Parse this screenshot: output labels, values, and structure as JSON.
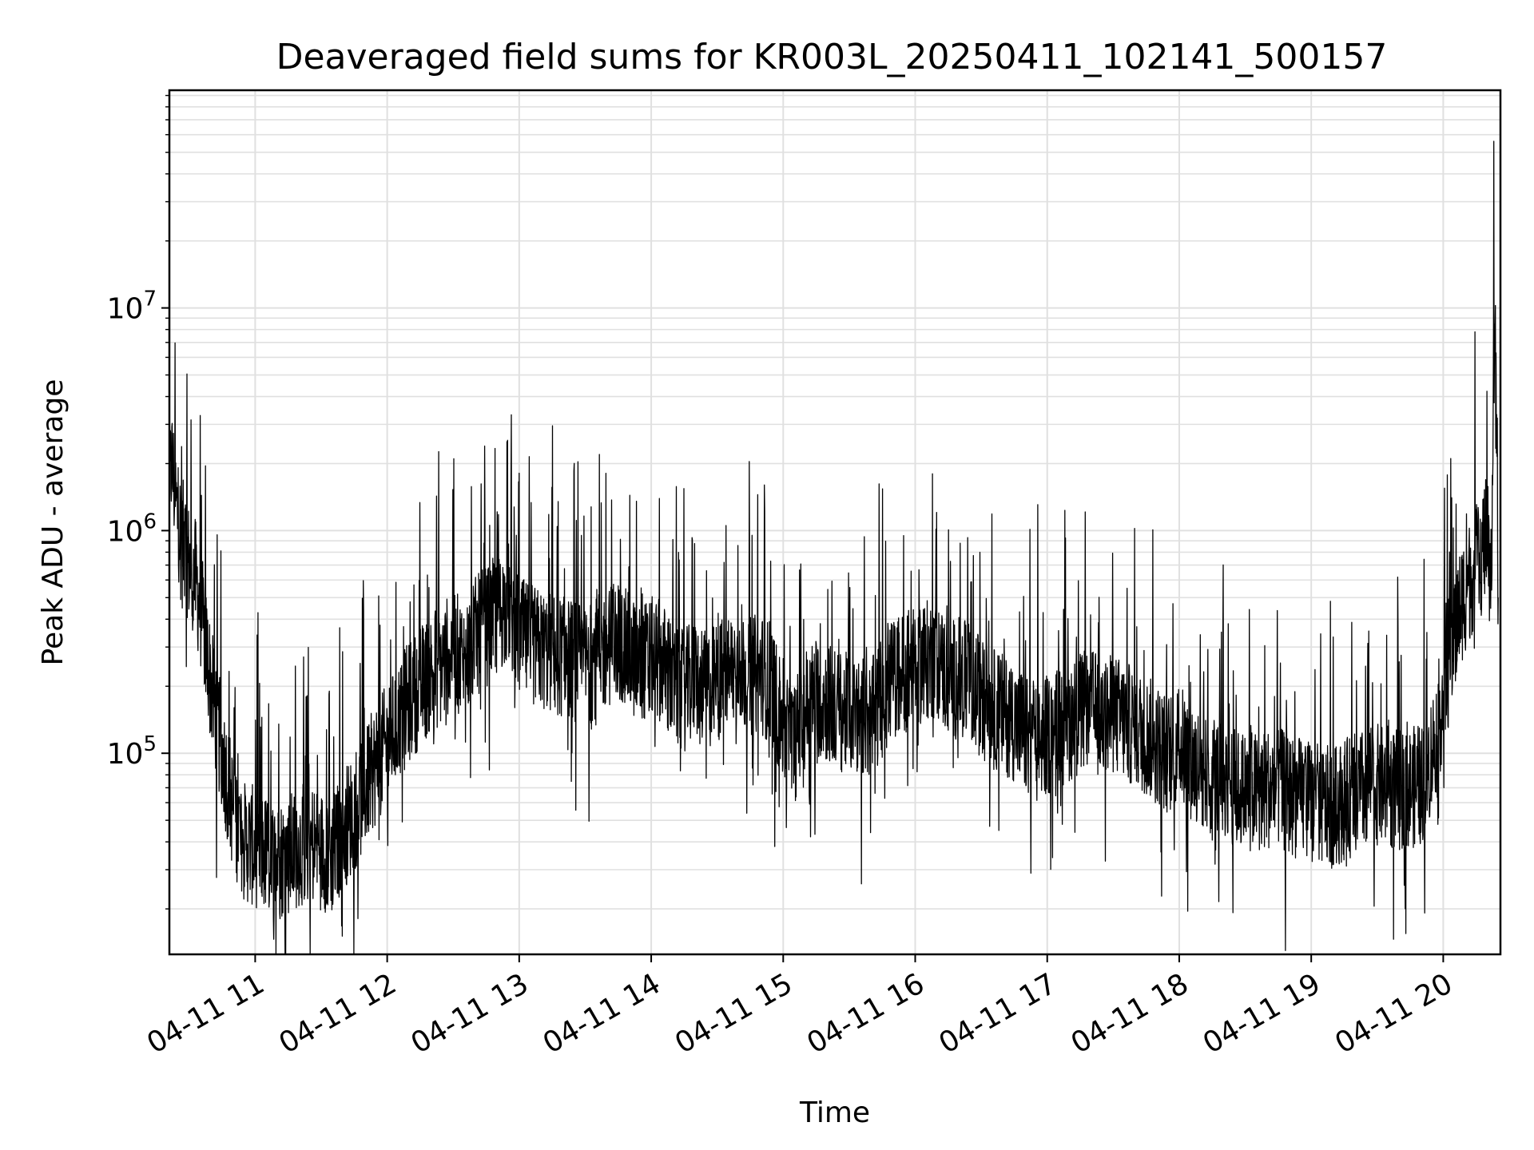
{
  "chart_data": {
    "type": "line",
    "title": "Deaveraged field sums for KR003L_20250411_102141_500157",
    "xlabel": "Time",
    "ylabel": "Peak ADU - average",
    "yscale": "log",
    "grid": true,
    "xlim": [
      "04-11 10:21",
      "04-11 20:26"
    ],
    "ylim": [
      12500,
      95000000
    ],
    "x_ticks": [
      "04-11 11",
      "04-11 12",
      "04-11 13",
      "04-11 14",
      "04-11 15",
      "04-11 16",
      "04-11 17",
      "04-11 18",
      "04-11 19",
      "04-11 20"
    ],
    "y_ticks": [
      {
        "base": "10",
        "exp": "5",
        "value": 100000
      },
      {
        "base": "10",
        "exp": "6",
        "value": 1000000
      },
      {
        "base": "10",
        "exp": "7",
        "value": 10000000
      }
    ],
    "line_color": "#000000",
    "grid_color": "#e0e0e0",
    "series": [
      {
        "x": [
          "10:21",
          "10:22",
          "10:24",
          "10:26",
          "10:28",
          "10:30",
          "10:33",
          "10:36",
          "10:40",
          "10:45",
          "10:50",
          "10:55",
          "11:00",
          "11:05",
          "11:10",
          "11:15",
          "11:20",
          "11:25",
          "11:30",
          "11:35",
          "11:40",
          "11:45",
          "11:50",
          "11:55",
          "12:00",
          "12:05",
          "12:10",
          "12:15",
          "12:20",
          "12:25",
          "12:30",
          "12:35",
          "12:40",
          "12:45",
          "12:50",
          "12:55",
          "13:00",
          "13:05",
          "13:10",
          "13:15",
          "13:20",
          "13:25",
          "13:30",
          "13:35",
          "13:40",
          "13:45",
          "13:50",
          "13:55",
          "14:00",
          "14:05",
          "14:10",
          "14:15",
          "14:20",
          "14:25",
          "14:30",
          "14:35",
          "14:40",
          "14:45",
          "14:50",
          "14:55",
          "15:00",
          "15:05",
          "15:10",
          "15:15",
          "15:20",
          "15:25",
          "15:30",
          "15:35",
          "15:40",
          "15:45",
          "15:50",
          "15:55",
          "16:00",
          "16:05",
          "16:10",
          "16:15",
          "16:20",
          "16:25",
          "16:30",
          "16:35",
          "16:40",
          "16:45",
          "16:50",
          "16:55",
          "17:00",
          "17:05",
          "17:10",
          "17:15",
          "17:20",
          "17:25",
          "17:30",
          "17:35",
          "17:40",
          "17:45",
          "17:50",
          "17:55",
          "18:00",
          "18:05",
          "18:10",
          "18:15",
          "18:20",
          "18:25",
          "18:30",
          "18:35",
          "18:40",
          "18:45",
          "18:50",
          "18:55",
          "19:00",
          "19:05",
          "19:10",
          "19:15",
          "19:20",
          "19:25",
          "19:30",
          "19:35",
          "19:40",
          "19:45",
          "19:50",
          "19:55",
          "20:00",
          "20:03",
          "20:06",
          "20:09",
          "20:12",
          "20:15",
          "20:17",
          "20:19",
          "20:20",
          "20:21",
          "20:22",
          "20:23",
          "20:24",
          "20:25"
        ],
        "y": [
          1500000,
          2100000,
          1300000,
          1000000,
          850000,
          700000,
          600000,
          400000,
          200000,
          100000,
          55000,
          40000,
          38000,
          35000,
          33000,
          35000,
          38000,
          40000,
          37000,
          35000,
          45000,
          55000,
          70000,
          90000,
          110000,
          140000,
          170000,
          200000,
          230000,
          250000,
          300000,
          250000,
          330000,
          370000,
          420000,
          480000,
          330000,
          310000,
          290000,
          280000,
          270000,
          260000,
          250000,
          270000,
          300000,
          320000,
          280000,
          250000,
          270000,
          260000,
          200000,
          190000,
          220000,
          190000,
          210000,
          230000,
          250000,
          220000,
          230000,
          200000,
          130000,
          110000,
          160000,
          180000,
          170000,
          155000,
          150000,
          150000,
          140000,
          180000,
          220000,
          230000,
          250000,
          260000,
          270000,
          210000,
          220000,
          200000,
          180000,
          160000,
          150000,
          140000,
          120000,
          110000,
          120000,
          130000,
          140000,
          150000,
          160000,
          140000,
          150000,
          140000,
          130000,
          120000,
          110000,
          100000,
          110000,
          95000,
          85000,
          75000,
          80000,
          70000,
          68000,
          67000,
          70000,
          70000,
          65000,
          63000,
          60000,
          58000,
          57000,
          62000,
          65000,
          70000,
          72000,
          70000,
          68000,
          70000,
          72000,
          100000,
          180000,
          260000,
          380000,
          500000,
          600000,
          700000,
          800000,
          900000,
          900000,
          800000,
          800000,
          6000000,
          5500000,
          500000
        ]
      }
    ]
  }
}
